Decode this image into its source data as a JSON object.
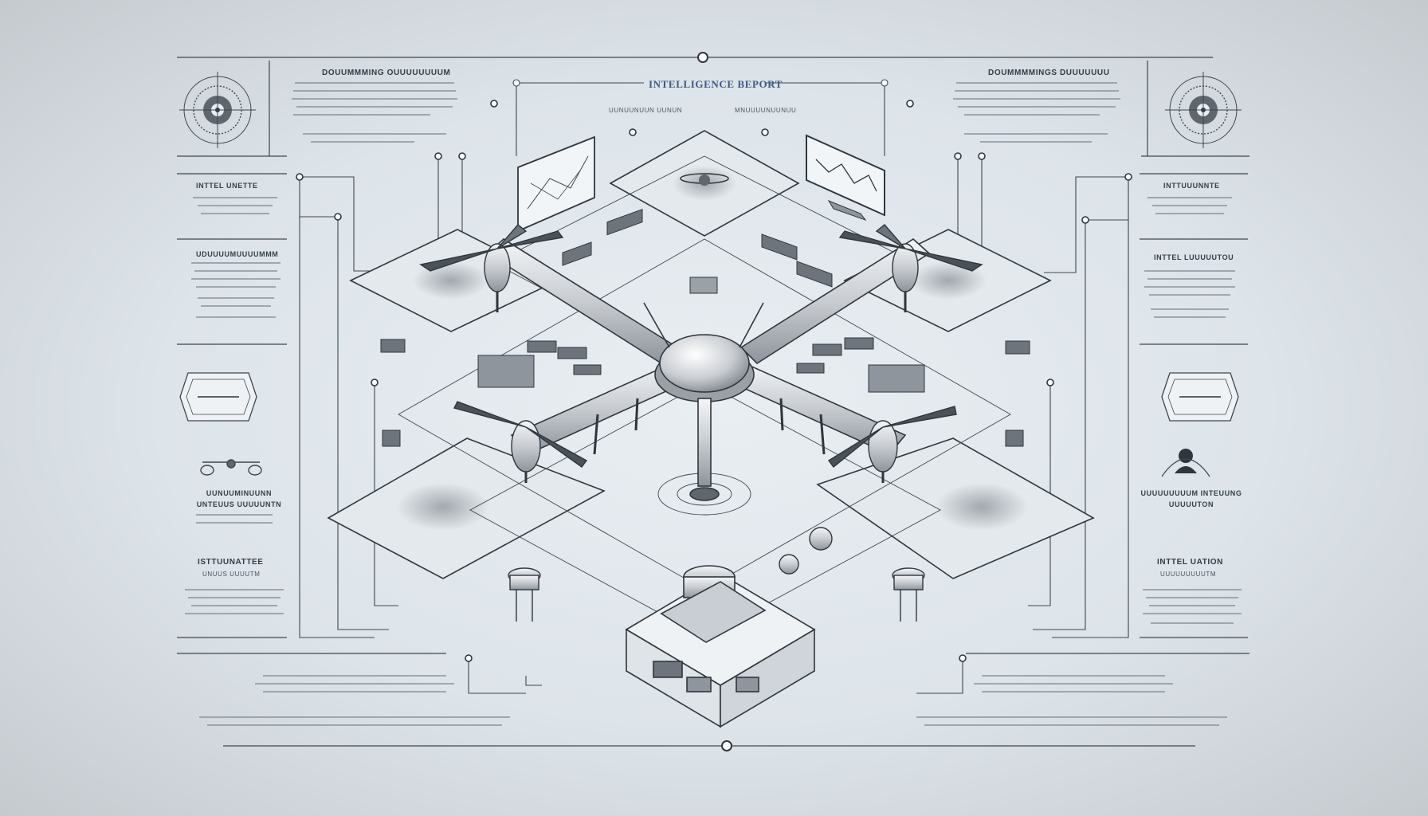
{
  "report": {
    "title": "INTELLIGENCE BEPORT",
    "top_left_header": "DOUUMMMING OUUUUUUUUM",
    "top_right_header": "DOUMMMMINGS DUUUUUUU",
    "top_center_left_label": "UUNUUNUUN UUNUN",
    "top_center_right_label": "MNUUUUNUUNUU"
  },
  "left_panel": {
    "items": [
      {
        "label": "INTTEL UNETTE"
      },
      {
        "label": "UDUUUUMUUUUMMM"
      },
      {
        "label": "UUNUUMINUUNN UNTEUUS UUUUUNTN"
      },
      {
        "label": "ISTTUUNATTEE",
        "sub": "UNUUS UUUUTM"
      }
    ]
  },
  "right_panel": {
    "items": [
      {
        "label": "INTTUUUNNTE"
      },
      {
        "label": "INTTEL LUUUUUTOU"
      },
      {
        "label": "UUUUUUUUUM INTEUUNG UUUUUTON"
      },
      {
        "label": "INTTEL UATION",
        "sub": "UUUUUUUUUTM"
      }
    ]
  },
  "colors": {
    "line": "#3d4650",
    "accent": "#3c5a86",
    "panel_fill": "#edf1f4"
  },
  "icons": [
    "radar-icon",
    "drone-icon",
    "monitor-icon",
    "map-icon",
    "badge-icon",
    "user-icon",
    "gauge-icon",
    "server-icon"
  ]
}
